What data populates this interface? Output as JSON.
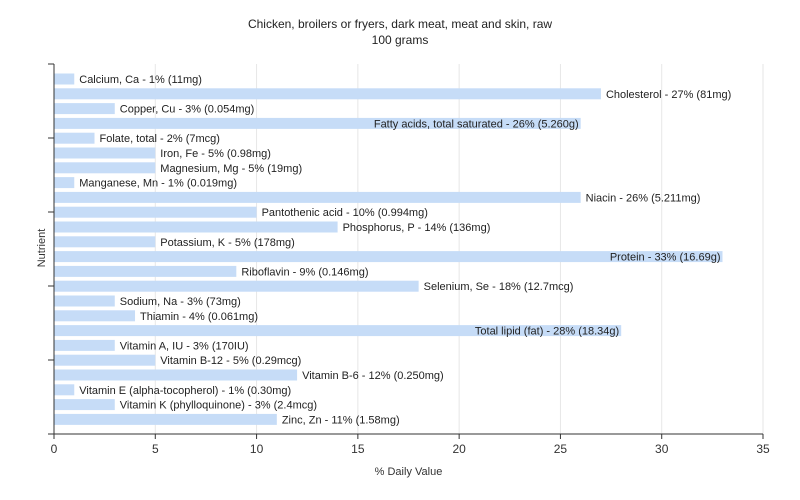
{
  "chart_data": {
    "type": "bar",
    "orientation": "horizontal",
    "title": "Chicken, broilers or fryers, dark meat, meat and skin, raw",
    "subtitle": "100 grams",
    "xlabel": "% Daily Value",
    "ylabel": "Nutrient",
    "xlim": [
      0,
      35
    ],
    "xticks": [
      "0",
      "5",
      "10",
      "15",
      "20",
      "25",
      "30",
      "35"
    ],
    "grid": true,
    "bar_color": "#c6dcf7",
    "categories": [
      "Calcium, Ca",
      "Cholesterol",
      "Copper, Cu",
      "Fatty acids, total saturated",
      "Folate, total",
      "Iron, Fe",
      "Magnesium, Mg",
      "Manganese, Mn",
      "Niacin",
      "Pantothenic acid",
      "Phosphorus, P",
      "Potassium, K",
      "Protein",
      "Riboflavin",
      "Selenium, Se",
      "Sodium, Na",
      "Thiamin",
      "Total lipid (fat)",
      "Vitamin A, IU",
      "Vitamin B-12",
      "Vitamin B-6",
      "Vitamin E (alpha-tocopherol)",
      "Vitamin K (phylloquinone)",
      "Zinc, Zn"
    ],
    "values": [
      1,
      27,
      3,
      26,
      2,
      5,
      5,
      1,
      26,
      10,
      14,
      5,
      33,
      9,
      18,
      3,
      4,
      28,
      3,
      5,
      12,
      1,
      3,
      11
    ],
    "labels": [
      "Calcium, Ca - 1% (11mg)",
      "Cholesterol - 27% (81mg)",
      "Copper, Cu - 3% (0.054mg)",
      "Fatty acids, total saturated - 26% (5.260g)",
      "Folate, total - 2% (7mcg)",
      "Iron, Fe - 5% (0.98mg)",
      "Magnesium, Mg - 5% (19mg)",
      "Manganese, Mn - 1% (0.019mg)",
      "Niacin - 26% (5.211mg)",
      "Pantothenic acid - 10% (0.994mg)",
      "Phosphorus, P - 14% (136mg)",
      "Potassium, K - 5% (178mg)",
      "Protein - 33% (16.69g)",
      "Riboflavin - 9% (0.146mg)",
      "Selenium, Se - 18% (12.7mcg)",
      "Sodium, Na - 3% (73mg)",
      "Thiamin - 4% (0.061mg)",
      "Total lipid (fat) - 28% (18.34g)",
      "Vitamin A, IU - 3% (170IU)",
      "Vitamin B-12 - 5% (0.29mcg)",
      "Vitamin B-6 - 12% (0.250mg)",
      "Vitamin E (alpha-tocopherol) - 1% (0.30mg)",
      "Vitamin K (phylloquinone) - 3% (2.4mcg)",
      "Zinc, Zn - 11% (1.58mg)"
    ]
  }
}
